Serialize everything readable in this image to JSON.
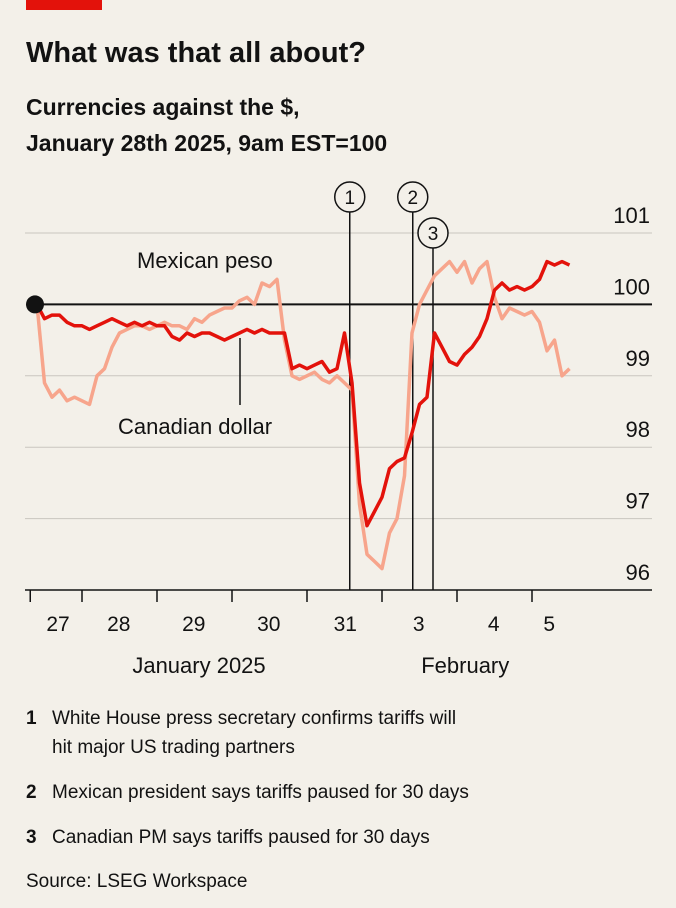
{
  "chart_data": {
    "type": "line",
    "title": "What was that all about?",
    "subtitle": [
      "Currencies against the $,",
      "January 28th 2025, 9am EST=100"
    ],
    "x": [
      0.4,
      0.5,
      0.6,
      0.7,
      0.8,
      0.9,
      1.0,
      1.1,
      1.2,
      1.3,
      1.4,
      1.5,
      1.6,
      1.7,
      1.8,
      1.9,
      2.0,
      2.1,
      2.2,
      2.3,
      2.4,
      2.5,
      2.6,
      2.7,
      2.8,
      2.9,
      3.0,
      3.1,
      3.2,
      3.3,
      3.4,
      3.5,
      3.6,
      3.7,
      3.8,
      3.9,
      4.0,
      4.1,
      4.2,
      4.3,
      4.4,
      4.5,
      4.6,
      4.7,
      4.8,
      4.9,
      5.0,
      5.1,
      5.2,
      5.3,
      5.4,
      5.5,
      5.6,
      5.7,
      5.8,
      5.9,
      6.0,
      6.1,
      6.2,
      6.3,
      6.4,
      6.5,
      6.6,
      6.7,
      6.8,
      6.9,
      7.0,
      7.1,
      7.2,
      7.3,
      7.4,
      7.5
    ],
    "series": [
      {
        "name": "Mexican peso",
        "color": "#f7a58c",
        "values": [
          100.0,
          98.9,
          98.7,
          98.8,
          98.65,
          98.7,
          98.65,
          98.6,
          99.0,
          99.1,
          99.4,
          99.6,
          99.65,
          99.7,
          99.7,
          99.65,
          99.7,
          99.75,
          99.7,
          99.7,
          99.65,
          99.8,
          99.75,
          99.85,
          99.9,
          99.95,
          99.95,
          100.05,
          100.1,
          100.0,
          100.3,
          100.25,
          100.35,
          99.5,
          99.0,
          98.95,
          99.0,
          99.05,
          98.95,
          98.9,
          99.0,
          98.9,
          98.8,
          97.2,
          96.5,
          96.4,
          96.3,
          96.8,
          97.0,
          97.6,
          99.6,
          100.0,
          100.2,
          100.4,
          100.5,
          100.6,
          100.45,
          100.6,
          100.3,
          100.5,
          100.6,
          100.1,
          99.8,
          99.95,
          99.9,
          99.85,
          99.9,
          99.75,
          99.35,
          99.5,
          99.0,
          99.1
        ]
      },
      {
        "name": "Canadian dollar",
        "color": "#e3120b",
        "values": [
          100.0,
          99.8,
          99.85,
          99.85,
          99.75,
          99.7,
          99.7,
          99.65,
          99.7,
          99.75,
          99.8,
          99.75,
          99.7,
          99.75,
          99.7,
          99.75,
          99.7,
          99.7,
          99.55,
          99.5,
          99.6,
          99.55,
          99.6,
          99.6,
          99.55,
          99.5,
          99.55,
          99.6,
          99.65,
          99.6,
          99.65,
          99.6,
          99.6,
          99.6,
          99.1,
          99.15,
          99.1,
          99.15,
          99.2,
          99.05,
          99.1,
          99.6,
          98.9,
          97.5,
          96.9,
          97.1,
          97.3,
          97.7,
          97.8,
          97.85,
          98.2,
          98.6,
          98.7,
          99.6,
          99.4,
          99.2,
          99.15,
          99.3,
          99.4,
          99.55,
          99.8,
          100.2,
          100.3,
          100.2,
          100.25,
          100.2,
          100.25,
          100.35,
          100.6,
          100.55,
          100.6,
          100.55
        ]
      }
    ],
    "ylim": [
      96,
      101
    ],
    "yticks": [
      96,
      97,
      98,
      99,
      100,
      101
    ],
    "xlim": [
      0.24,
      8.6
    ],
    "xticks": [
      {
        "value": 0.68,
        "label": "27"
      },
      {
        "value": 1.49,
        "label": "28"
      },
      {
        "value": 2.49,
        "label": "29"
      },
      {
        "value": 3.49,
        "label": "30"
      },
      {
        "value": 4.51,
        "label": "31"
      },
      {
        "value": 5.49,
        "label": "3"
      },
      {
        "value": 6.49,
        "label": "4"
      },
      {
        "value": 7.23,
        "label": "5"
      }
    ],
    "xtick_marks": [
      0.31,
      1,
      2,
      3,
      4,
      5,
      6,
      7
    ],
    "months": [
      {
        "value": 2.56,
        "label": "January 2025"
      },
      {
        "value": 6.11,
        "label": "February"
      }
    ],
    "events": [
      {
        "label": "1",
        "x": 4.57
      },
      {
        "label": "2",
        "x": 5.41
      },
      {
        "label": "3",
        "x": 5.68
      }
    ],
    "notes": [
      {
        "number": "1",
        "lines": [
          "White House press secretary confirms tariffs will",
          "hit major US trading partners"
        ]
      },
      {
        "number": "2",
        "lines": [
          "Mexican president says tariffs paused for 30 days"
        ]
      },
      {
        "number": "3",
        "lines": [
          "Canadian PM says tariffs paused for 30 days"
        ]
      }
    ],
    "source": "Source: LSEG Workspace"
  }
}
